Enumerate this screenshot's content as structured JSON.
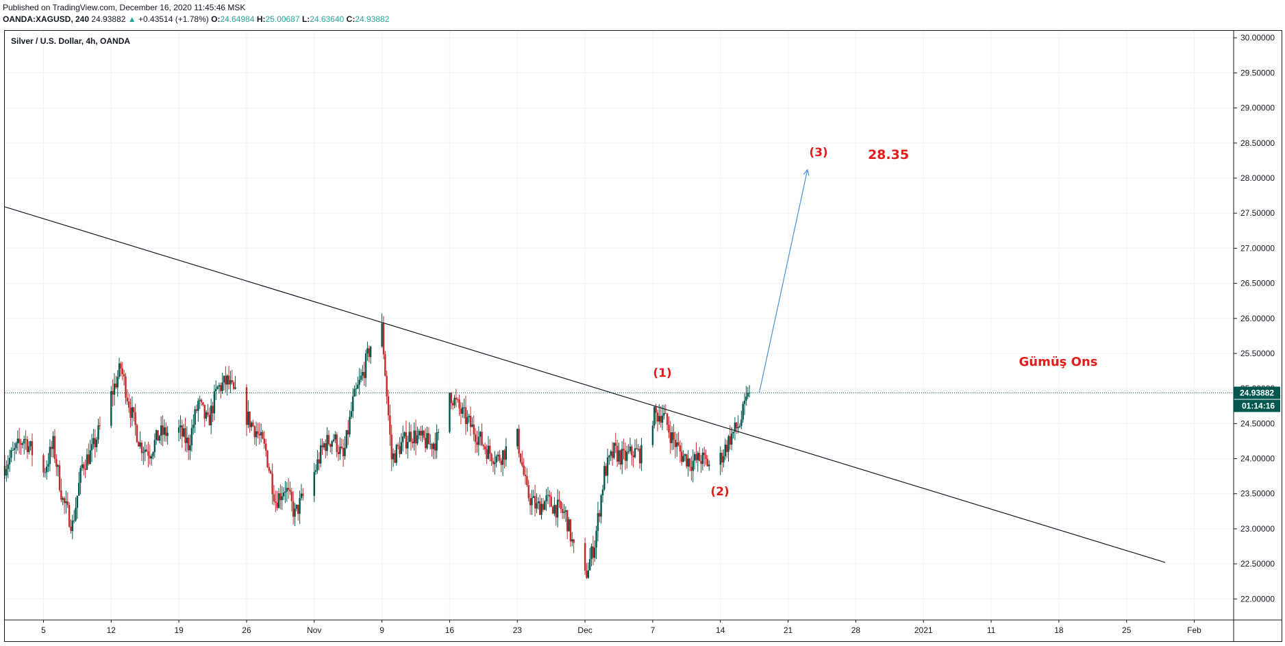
{
  "header": {
    "published": "Published on TradingView.com, December 16, 2020 11:45:46 MSK",
    "symbol": "OANDA:XAGUSD, 240",
    "last": "24.93882",
    "change": "+0.43514 (+1.78%)",
    "o_label": "O:",
    "o_value": "24.64984",
    "h_label": "H:",
    "h_value": "25.00687",
    "l_label": "L:",
    "l_value": "24.63640",
    "c_label": "C:",
    "c_value": "24.93882"
  },
  "chart_title": "Silver / U.S. Dollar, 4h, OANDA",
  "price_label": "24.93882",
  "countdown_label": "01:14:16",
  "annotations": {
    "wave1": "(1)",
    "wave2": "(2)",
    "wave3": "(3)",
    "target": "28.35",
    "name": "Gümüş Ons"
  },
  "colors": {
    "up": "#00574e",
    "down": "#c62828",
    "annotation": "#e31b1b",
    "arrow": "#4a90d9",
    "trendline": "#131722",
    "price_line": "#00574e",
    "grid": "#f0f3fa"
  },
  "chart_data": {
    "type": "candlestick",
    "title": "Silver / U.S. Dollar, 4h, OANDA",
    "y_ticks": [
      "22.00000",
      "22.50000",
      "23.00000",
      "23.50000",
      "24.00000",
      "24.50000",
      "25.00000",
      "25.50000",
      "26.00000",
      "26.50000",
      "27.00000",
      "27.50000",
      "28.00000",
      "28.50000",
      "29.00000",
      "29.50000",
      "30.00000"
    ],
    "ylim": [
      21.7,
      30.1
    ],
    "x_ticks": [
      {
        "label": "5",
        "date": "2020-10-05"
      },
      {
        "label": "12",
        "date": "2020-10-12"
      },
      {
        "label": "19",
        "date": "2020-10-19"
      },
      {
        "label": "26",
        "date": "2020-10-26"
      },
      {
        "label": "Nov",
        "date": "2020-11-02"
      },
      {
        "label": "9",
        "date": "2020-11-09"
      },
      {
        "label": "16",
        "date": "2020-11-16"
      },
      {
        "label": "23",
        "date": "2020-11-23"
      },
      {
        "label": "Dec",
        "date": "2020-11-30"
      },
      {
        "label": "7",
        "date": "2020-12-07"
      },
      {
        "label": "14",
        "date": "2020-12-14"
      },
      {
        "label": "21",
        "date": "2020-12-21"
      },
      {
        "label": "28",
        "date": "2020-12-28"
      },
      {
        "label": "2021",
        "date": "2021-01-04"
      },
      {
        "label": "11",
        "date": "2021-01-11"
      },
      {
        "label": "18",
        "date": "2021-01-18"
      },
      {
        "label": "25",
        "date": "2021-01-25"
      },
      {
        "label": "Feb",
        "date": "2021-02-01"
      }
    ],
    "xlim": [
      "2020-10-01",
      "2021-02-05"
    ],
    "close_path": [
      {
        "date": "2020-10-01",
        "price": 23.9
      },
      {
        "date": "2020-10-03",
        "price": 24.3
      },
      {
        "date": "2020-10-05",
        "price": 23.8
      },
      {
        "date": "2020-10-06",
        "price": 24.2
      },
      {
        "date": "2020-10-07",
        "price": 23.4
      },
      {
        "date": "2020-10-08",
        "price": 23.05
      },
      {
        "date": "2020-10-09",
        "price": 23.9
      },
      {
        "date": "2020-10-10",
        "price": 24.1
      },
      {
        "date": "2020-10-12",
        "price": 24.9
      },
      {
        "date": "2020-10-13",
        "price": 25.3
      },
      {
        "date": "2020-10-14",
        "price": 24.7
      },
      {
        "date": "2020-10-15",
        "price": 24.2
      },
      {
        "date": "2020-10-16",
        "price": 24.1
      },
      {
        "date": "2020-10-17",
        "price": 24.35
      },
      {
        "date": "2020-10-19",
        "price": 24.4
      },
      {
        "date": "2020-10-20",
        "price": 24.2
      },
      {
        "date": "2020-10-21",
        "price": 24.8
      },
      {
        "date": "2020-10-22",
        "price": 24.5
      },
      {
        "date": "2020-10-23",
        "price": 25.0
      },
      {
        "date": "2020-10-24",
        "price": 25.1
      },
      {
        "date": "2020-10-26",
        "price": 24.6
      },
      {
        "date": "2020-10-27",
        "price": 24.4
      },
      {
        "date": "2020-10-28",
        "price": 24.1
      },
      {
        "date": "2020-10-29",
        "price": 23.4
      },
      {
        "date": "2020-10-30",
        "price": 23.6
      },
      {
        "date": "2020-10-31",
        "price": 23.2
      },
      {
        "date": "2020-11-02",
        "price": 23.8
      },
      {
        "date": "2020-11-03",
        "price": 24.2
      },
      {
        "date": "2020-11-04",
        "price": 24.3
      },
      {
        "date": "2020-11-05",
        "price": 24.0
      },
      {
        "date": "2020-11-06",
        "price": 24.8
      },
      {
        "date": "2020-11-07",
        "price": 25.2
      },
      {
        "date": "2020-11-08",
        "price": 25.7
      },
      {
        "date": "2020-11-09",
        "price": 25.85
      },
      {
        "date": "2020-11-10",
        "price": 24.0
      },
      {
        "date": "2020-11-11",
        "price": 24.2
      },
      {
        "date": "2020-11-12",
        "price": 24.35
      },
      {
        "date": "2020-11-14",
        "price": 24.2
      },
      {
        "date": "2020-11-15",
        "price": 24.3
      },
      {
        "date": "2020-11-16",
        "price": 24.95
      },
      {
        "date": "2020-11-17",
        "price": 24.7
      },
      {
        "date": "2020-11-18",
        "price": 24.5
      },
      {
        "date": "2020-11-19",
        "price": 24.3
      },
      {
        "date": "2020-11-20",
        "price": 24.1
      },
      {
        "date": "2020-11-21",
        "price": 24.0
      },
      {
        "date": "2020-11-23",
        "price": 24.3
      },
      {
        "date": "2020-11-24",
        "price": 23.5
      },
      {
        "date": "2020-11-25",
        "price": 23.3
      },
      {
        "date": "2020-11-26",
        "price": 23.4
      },
      {
        "date": "2020-11-27",
        "price": 23.3
      },
      {
        "date": "2020-11-28",
        "price": 23.2
      },
      {
        "date": "2020-11-29",
        "price": 22.6
      },
      {
        "date": "2020-11-30",
        "price": 22.3
      },
      {
        "date": "2020-12-01",
        "price": 22.8
      },
      {
        "date": "2020-12-02",
        "price": 23.8
      },
      {
        "date": "2020-12-03",
        "price": 24.1
      },
      {
        "date": "2020-12-04",
        "price": 24.0
      },
      {
        "date": "2020-12-05",
        "price": 24.1
      },
      {
        "date": "2020-12-06",
        "price": 24.05
      },
      {
        "date": "2020-12-07",
        "price": 24.6
      },
      {
        "date": "2020-12-08",
        "price": 24.65
      },
      {
        "date": "2020-12-09",
        "price": 24.3
      },
      {
        "date": "2020-12-10",
        "price": 24.05
      },
      {
        "date": "2020-12-11",
        "price": 23.95
      },
      {
        "date": "2020-12-12",
        "price": 24.0
      },
      {
        "date": "2020-12-13",
        "price": 23.9
      },
      {
        "date": "2020-12-14",
        "price": 24.0
      },
      {
        "date": "2020-12-15",
        "price": 24.3
      },
      {
        "date": "2020-12-16",
        "price": 24.5
      },
      {
        "date": "2020-12-17",
        "price": 24.93882
      }
    ],
    "trendline": [
      {
        "date": "2020-10-01",
        "price": 27.59
      },
      {
        "date": "2021-01-29",
        "price": 22.52
      }
    ],
    "projection_arrow": [
      {
        "date": "2020-12-18",
        "price": 24.93
      },
      {
        "date": "2020-12-23",
        "price": 28.12
      }
    ],
    "last_price": 24.93882
  }
}
